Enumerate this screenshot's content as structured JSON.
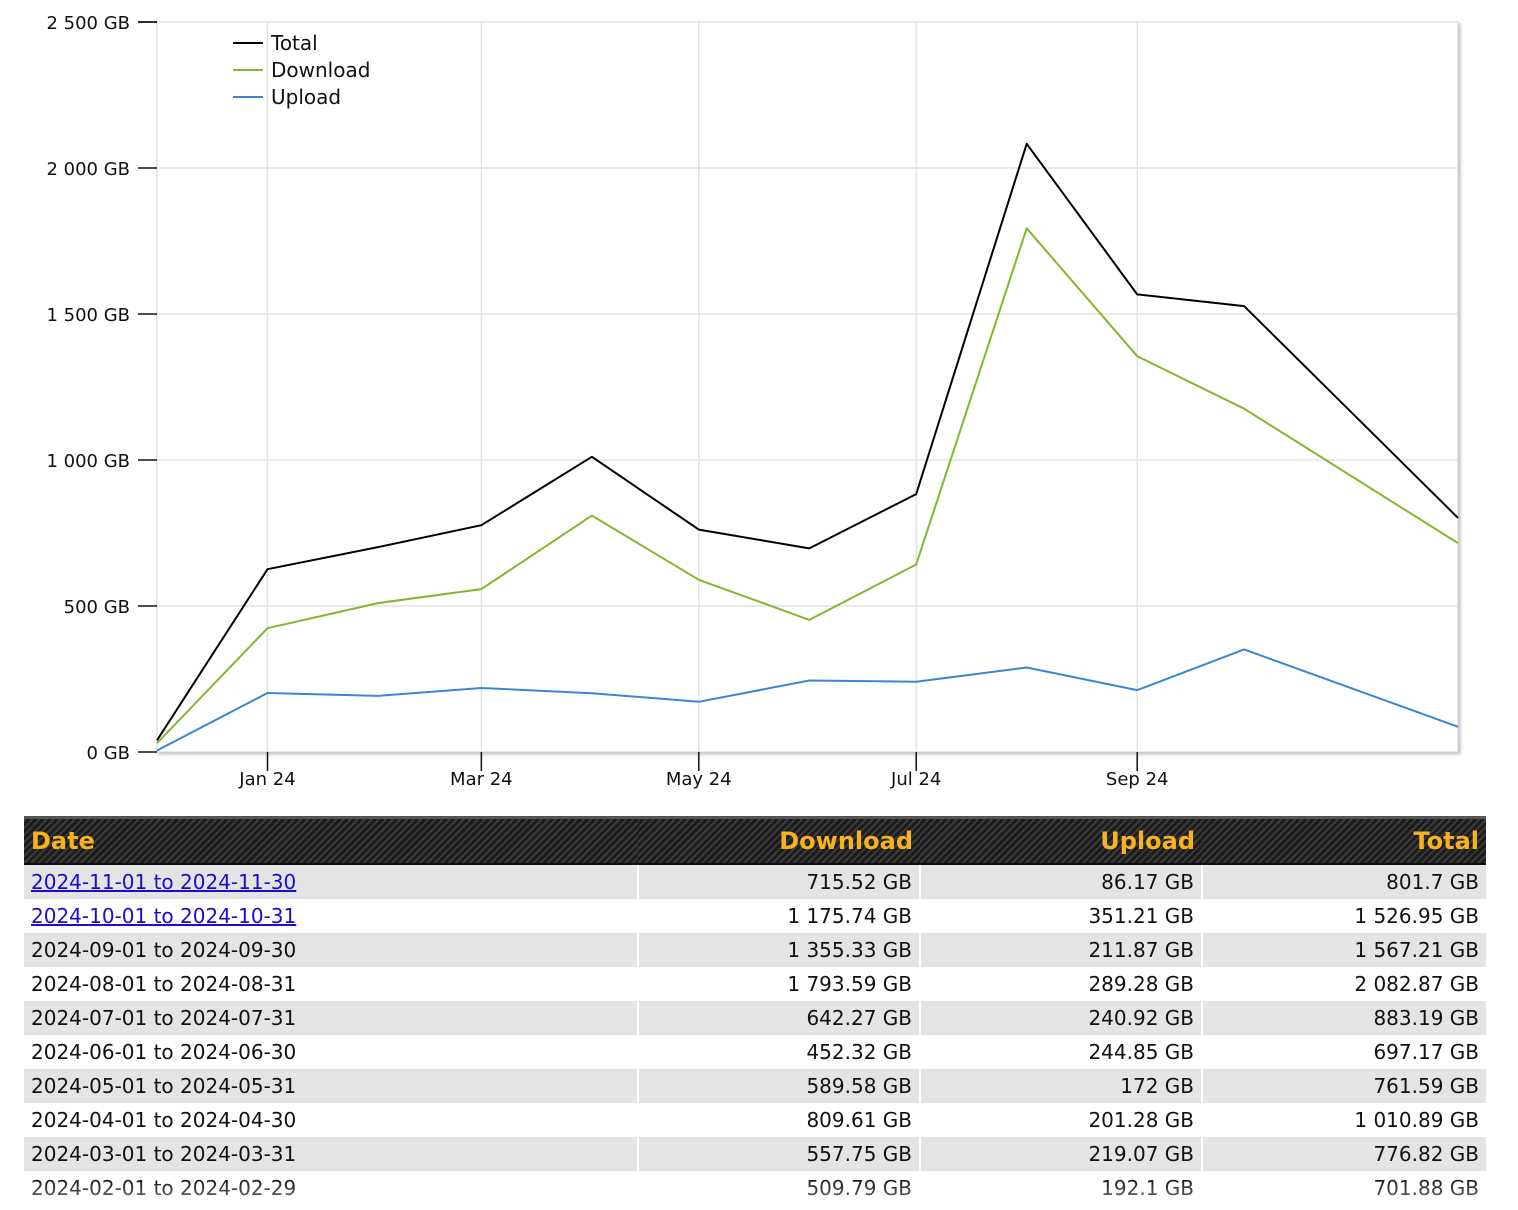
{
  "chart_data": {
    "type": "line",
    "x_tick_labels": [
      "Jan 24",
      "Mar 24",
      "May 24",
      "Jul 24",
      "Sep 24"
    ],
    "x_tick_months": [
      "2024-01",
      "2024-03",
      "2024-05",
      "2024-07",
      "2024-09"
    ],
    "y_tick_labels": [
      "0 GB",
      "500 GB",
      "1 000 GB",
      "1 500 GB",
      "2 000 GB",
      "2 500 GB"
    ],
    "y_ticks": [
      0,
      500,
      1000,
      1500,
      2000,
      2500
    ],
    "ylim": [
      0,
      2500
    ],
    "xlim": [
      "2023-12-01",
      "2024-11-30"
    ],
    "grid": true,
    "legend_position": "top-left",
    "x": [
      "2023-12-01",
      "2024-01-01",
      "2024-02-01",
      "2024-03-01",
      "2024-04-01",
      "2024-05-01",
      "2024-06-01",
      "2024-07-01",
      "2024-08-01",
      "2024-09-01",
      "2024-10-01",
      "2024-11-30"
    ],
    "series": [
      {
        "name": "Total",
        "color": "#000000",
        "values": [
          40,
          626.17,
          701.88,
          776.82,
          1010.89,
          761.59,
          697.17,
          883.19,
          2082.87,
          1567.21,
          1526.95,
          801.7
        ]
      },
      {
        "name": "Download",
        "color": "#86b52e",
        "values": [
          30,
          424.05,
          509.79,
          557.75,
          809.61,
          589.58,
          452.32,
          642.27,
          1793.59,
          1355.33,
          1175.74,
          715.52
        ]
      },
      {
        "name": "Upload",
        "color": "#3a86d4",
        "values": [
          5,
          202.12,
          192.1,
          219.07,
          201.28,
          172,
          244.85,
          240.92,
          289.28,
          211.87,
          351.21,
          86.17
        ]
      }
    ]
  },
  "table": {
    "headers": {
      "date": "Date",
      "download": "Download",
      "upload": "Upload",
      "total": "Total"
    },
    "rows": [
      {
        "date": "2024-11-01 to 2024-11-30",
        "download": "715.52 GB",
        "upload": "86.17 GB",
        "total": "801.7 GB",
        "link": true
      },
      {
        "date": "2024-10-01 to 2024-10-31",
        "download": "1 175.74 GB",
        "upload": "351.21 GB",
        "total": "1 526.95 GB",
        "link": true
      },
      {
        "date": "2024-09-01 to 2024-09-30",
        "download": "1 355.33 GB",
        "upload": "211.87 GB",
        "total": "1 567.21 GB",
        "link": false
      },
      {
        "date": "2024-08-01 to 2024-08-31",
        "download": "1 793.59 GB",
        "upload": "289.28 GB",
        "total": "2 082.87 GB",
        "link": false
      },
      {
        "date": "2024-07-01 to 2024-07-31",
        "download": "642.27 GB",
        "upload": "240.92 GB",
        "total": "883.19 GB",
        "link": false
      },
      {
        "date": "2024-06-01 to 2024-06-30",
        "download": "452.32 GB",
        "upload": "244.85 GB",
        "total": "697.17 GB",
        "link": false
      },
      {
        "date": "2024-05-01 to 2024-05-31",
        "download": "589.58 GB",
        "upload": "172 GB",
        "total": "761.59 GB",
        "link": false
      },
      {
        "date": "2024-04-01 to 2024-04-30",
        "download": "809.61 GB",
        "upload": "201.28 GB",
        "total": "1 010.89 GB",
        "link": false
      },
      {
        "date": "2024-03-01 to 2024-03-31",
        "download": "557.75 GB",
        "upload": "219.07 GB",
        "total": "776.82 GB",
        "link": false
      },
      {
        "date": "2024-02-01 to 2024-02-29",
        "download": "509.79 GB",
        "upload": "192.1 GB",
        "total": "701.88 GB",
        "link": false
      }
    ]
  }
}
